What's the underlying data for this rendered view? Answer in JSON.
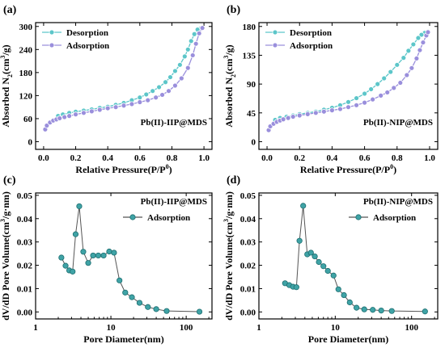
{
  "colors": {
    "desorption": "#5cc6c9",
    "adsorption": "#9a8fdc",
    "psd": "#3fa3a6",
    "line": "#555555"
  },
  "chart_data": [
    {
      "id": "a",
      "panel_label": "(a)",
      "type": "line",
      "annotation": "Pb(II)-IIP@MDS",
      "xlabel": "Relative Pressure(P/P",
      "xlabel_sup": "0",
      "ylabel": "Absorbed N",
      "ylabel_sub": "2",
      "ylabel_unit_a": "(cm",
      "ylabel_sup": "3",
      "ylabel_unit_b": "/g)",
      "xlim": [
        -0.05,
        1.05
      ],
      "ylim": [
        -20,
        310
      ],
      "xticks": [
        0.0,
        0.2,
        0.4,
        0.6,
        0.8,
        1.0
      ],
      "xtick_labels": [
        "0.0",
        "0.2",
        "0.4",
        "0.6",
        "0.8",
        "1.0"
      ],
      "yticks": [
        0,
        60,
        120,
        180,
        240,
        300
      ],
      "ytick_labels": [
        "0",
        "60",
        "120",
        "180",
        "240",
        "300"
      ],
      "legend_position": "top-left",
      "series": [
        {
          "name": "Desorption",
          "color_key": "desorption",
          "x": [
            0.98,
            0.96,
            0.94,
            0.92,
            0.9,
            0.88,
            0.85,
            0.82,
            0.79,
            0.76,
            0.72,
            0.68,
            0.64,
            0.6,
            0.55,
            0.5,
            0.45,
            0.4,
            0.35,
            0.3,
            0.25,
            0.2,
            0.16,
            0.12,
            0.09
          ],
          "y": [
            295,
            292,
            280,
            262,
            240,
            222,
            200,
            184,
            168,
            155,
            142,
            132,
            123,
            115,
            108,
            101,
            96,
            91,
            88,
            84,
            81,
            78,
            75,
            71,
            67
          ]
        },
        {
          "name": "Adsorption",
          "color_key": "adsorption",
          "x": [
            0.01,
            0.02,
            0.04,
            0.06,
            0.08,
            0.1,
            0.13,
            0.16,
            0.2,
            0.25,
            0.3,
            0.35,
            0.4,
            0.45,
            0.5,
            0.55,
            0.6,
            0.65,
            0.7,
            0.74,
            0.78,
            0.82,
            0.86,
            0.9,
            0.93,
            0.95,
            0.97,
            0.99
          ],
          "y": [
            32,
            42,
            50,
            55,
            58,
            61,
            64,
            67,
            71,
            75,
            79,
            83,
            87,
            90,
            94,
            98,
            103,
            108,
            115,
            122,
            132,
            146,
            165,
            192,
            225,
            255,
            282,
            296
          ]
        }
      ]
    },
    {
      "id": "b",
      "panel_label": "(b)",
      "type": "line",
      "annotation": "Pb(II)-NIP@MDS",
      "xlabel": "Relative Pressure(P/P",
      "xlabel_sup": "0",
      "ylabel": "Absorbed N",
      "ylabel_sub": "2",
      "ylabel_unit_a": "(cm",
      "ylabel_sup": "3",
      "ylabel_unit_b": "/g)",
      "xlim": [
        -0.05,
        1.05
      ],
      "ylim": [
        -12,
        186
      ],
      "xticks": [
        0.0,
        0.2,
        0.4,
        0.6,
        0.8,
        1.0
      ],
      "xtick_labels": [
        "0.0",
        "0.2",
        "0.4",
        "0.6",
        "0.8",
        "1.0"
      ],
      "yticks": [
        0,
        45,
        90,
        135,
        180
      ],
      "ytick_labels": [
        "0",
        "45",
        "90",
        "135",
        "180"
      ],
      "legend_position": "top-left",
      "series": [
        {
          "name": "Desorption",
          "color_key": "desorption",
          "x": [
            0.99,
            0.97,
            0.95,
            0.93,
            0.9,
            0.87,
            0.84,
            0.8,
            0.76,
            0.72,
            0.68,
            0.64,
            0.6,
            0.55,
            0.5,
            0.45,
            0.4,
            0.35,
            0.3,
            0.25,
            0.2,
            0.16,
            0.12,
            0.08,
            0.05
          ],
          "y": [
            172,
            170,
            167,
            162,
            152,
            142,
            131,
            120,
            109,
            99,
            90,
            82,
            75,
            68,
            62,
            57,
            53,
            50,
            47,
            45,
            43,
            41,
            39,
            37,
            34
          ]
        },
        {
          "name": "Adsorption",
          "color_key": "adsorption",
          "x": [
            0.01,
            0.02,
            0.04,
            0.06,
            0.08,
            0.1,
            0.13,
            0.16,
            0.2,
            0.25,
            0.3,
            0.35,
            0.4,
            0.45,
            0.5,
            0.55,
            0.6,
            0.65,
            0.7,
            0.74,
            0.78,
            0.82,
            0.86,
            0.89,
            0.92,
            0.94,
            0.96,
            0.98,
            0.99
          ],
          "y": [
            18,
            24,
            28,
            31,
            33,
            35,
            37,
            39,
            41,
            43,
            45,
            47,
            49,
            51,
            54,
            57,
            61,
            66,
            72,
            77,
            84,
            92,
            104,
            115,
            130,
            143,
            155,
            166,
            171
          ]
        }
      ]
    },
    {
      "id": "c",
      "panel_label": "(c)",
      "type": "line",
      "annotation": "Pb(II)-IIP@MDS",
      "xscale": "log",
      "xlabel": "Pore Diameter(nm)",
      "ylabel": "dV/dD Pore Volume(cm",
      "ylabel_sup": "3",
      "ylabel_unit_b": "/g·nm)",
      "xlim": [
        1,
        220
      ],
      "ylim": [
        -0.003,
        0.051
      ],
      "xticks": [
        1,
        10,
        100
      ],
      "xtick_labels": [
        "1",
        "10",
        "100"
      ],
      "yticks": [
        0.0,
        0.01,
        0.02,
        0.03,
        0.04,
        0.05
      ],
      "ytick_labels": [
        "0.00",
        "0.01",
        "0.02",
        "0.03",
        "0.04",
        "0.05"
      ],
      "legend_position": "top-right",
      "series": [
        {
          "name": "Adsorption",
          "color_key": "psd",
          "x": [
            2.2,
            2.5,
            2.8,
            3.1,
            3.4,
            3.8,
            4.3,
            5.0,
            5.8,
            6.8,
            8.0,
            9.5,
            11.0,
            13.0,
            15.5,
            19.0,
            24.0,
            31.0,
            40.0,
            55.0,
            150.0
          ],
          "y": [
            0.0233,
            0.0198,
            0.0178,
            0.0173,
            0.0333,
            0.0453,
            0.0258,
            0.021,
            0.0242,
            0.0242,
            0.0242,
            0.0259,
            0.0254,
            0.0135,
            0.0083,
            0.0063,
            0.0039,
            0.0021,
            0.0012,
            0.0004,
            0.0001
          ]
        }
      ]
    },
    {
      "id": "d",
      "panel_label": "(d)",
      "type": "line",
      "annotation": "Pb(II)-NIP@MDS",
      "xscale": "log",
      "xlabel": "Pore Diameter(nm)",
      "ylabel": "dV/dD Pore Volume(cm",
      "ylabel_sup": "3",
      "ylabel_unit_b": "/g·nm)",
      "xlim": [
        1,
        220
      ],
      "ylim": [
        -0.003,
        0.051
      ],
      "xticks": [
        1,
        10,
        100
      ],
      "xtick_labels": [
        "1",
        "10",
        "100"
      ],
      "yticks": [
        0.0,
        0.01,
        0.02,
        0.03,
        0.04,
        0.05
      ],
      "ytick_labels": [
        "0.00",
        "0.01",
        "0.02",
        "0.03",
        "0.04",
        "0.05"
      ],
      "legend_position": "top-right",
      "series": [
        {
          "name": "Adsorption",
          "color_key": "psd",
          "x": [
            2.2,
            2.5,
            2.8,
            3.1,
            3.4,
            3.8,
            4.3,
            4.8,
            5.4,
            6.1,
            7.0,
            8.0,
            9.5,
            11.0,
            13.0,
            15.5,
            19.0,
            24.0,
            31.0,
            40.0,
            55.0,
            150.0
          ],
          "y": [
            0.0123,
            0.0115,
            0.0108,
            0.0106,
            0.0305,
            0.0455,
            0.0247,
            0.0254,
            0.0238,
            0.0214,
            0.0196,
            0.0176,
            0.0156,
            0.0097,
            0.0072,
            0.0041,
            0.0018,
            0.0011,
            0.0009,
            0.0006,
            0.0004,
            0.0002
          ]
        }
      ]
    }
  ]
}
